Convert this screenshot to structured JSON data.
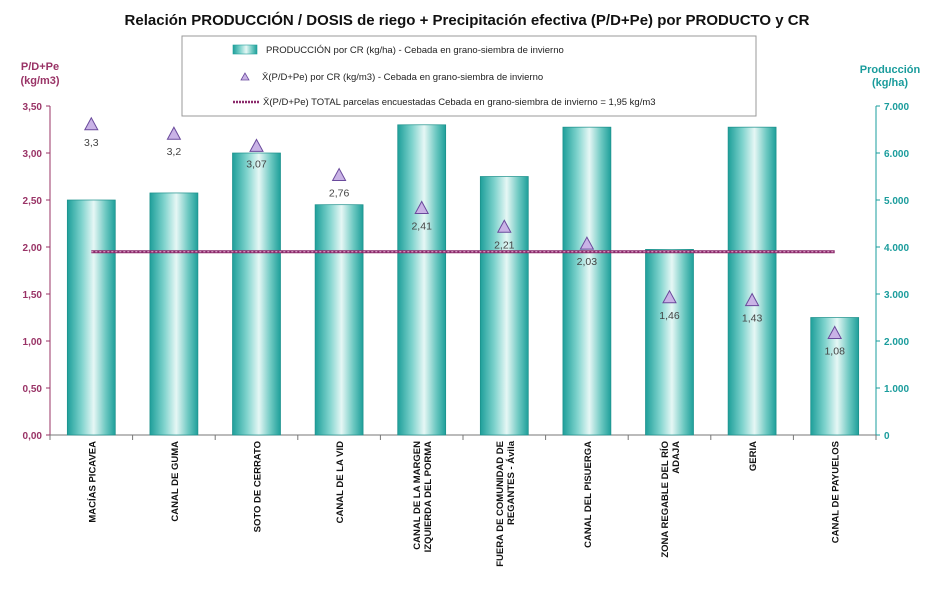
{
  "chart_data": {
    "type": "bar",
    "title": "Relación PRODUCCIÓN / DOSIS de riego + Precipitación efectiva (P/D+Pe) por PRODUCTO y CR",
    "ylabel_left": [
      "P/D+Pe",
      "(kg/m3)"
    ],
    "ylabel_right": [
      "Producción",
      "(kg/ha)"
    ],
    "ylim_left": [
      0,
      3.5
    ],
    "ylim_right": [
      0,
      7000
    ],
    "yticks_left": [
      "0,00",
      "0,50",
      "1,00",
      "1,50",
      "2,00",
      "2,50",
      "3,00",
      "3,50"
    ],
    "yticks_right": [
      "0",
      "1.000",
      "2.000",
      "3.000",
      "4.000",
      "5.000",
      "6.000",
      "7.000"
    ],
    "categories": [
      [
        "MACÍAS PICAVEA"
      ],
      [
        "CANAL DE GUMA"
      ],
      [
        "SOTO DE CERRATO"
      ],
      [
        "CANAL DE LA VID"
      ],
      [
        "CANAL DE LA MARGEN",
        "IZQUIERDA DEL PORMA"
      ],
      [
        "FUERA DE COMUNIDAD DE",
        "REGANTES - Ávila"
      ],
      [
        "CANAL DEL PISUERGA"
      ],
      [
        "ZONA REGABLE DEL RÍO",
        "ADAJA"
      ],
      [
        "GERIA"
      ],
      [
        "CANAL DE PAYUELOS"
      ]
    ],
    "series": [
      {
        "name": "PRODUCCIÓN por CR (kg/ha) - Cebada en grano-siembra de invierno",
        "axis": "right",
        "kind": "bar",
        "values": [
          5000,
          5150,
          6000,
          4900,
          6600,
          5500,
          6550,
          3950,
          6550,
          2500
        ]
      },
      {
        "name": "X̄(P/D+Pe) por CR (kg/m3) - Cebada en grano-siembra de invierno",
        "axis": "left",
        "kind": "marker",
        "values": [
          3.3,
          3.2,
          3.07,
          2.76,
          2.41,
          2.21,
          2.03,
          1.46,
          1.43,
          1.08
        ],
        "labels": [
          "3,3",
          "3,2",
          "3,07",
          "2,76",
          "2,41",
          "2,21",
          "2,03",
          "1,46",
          "1,43",
          "1,08"
        ]
      },
      {
        "name": "X̄(P/D+Pe) TOTAL parcelas encuestadas Cebada en grano-siembra de invierno = 1,95 kg/m3",
        "axis": "left",
        "kind": "line",
        "value": 1.95
      }
    ],
    "colors": {
      "bar_dark": "#1e9f9a",
      "bar_light": "#e6f7f5",
      "marker_fill": "#c9b3e6",
      "marker_stroke": "#6a4a9c",
      "line": "#8b2a6b",
      "left_axis": "#993366",
      "right_axis": "#1a9c9c"
    }
  }
}
